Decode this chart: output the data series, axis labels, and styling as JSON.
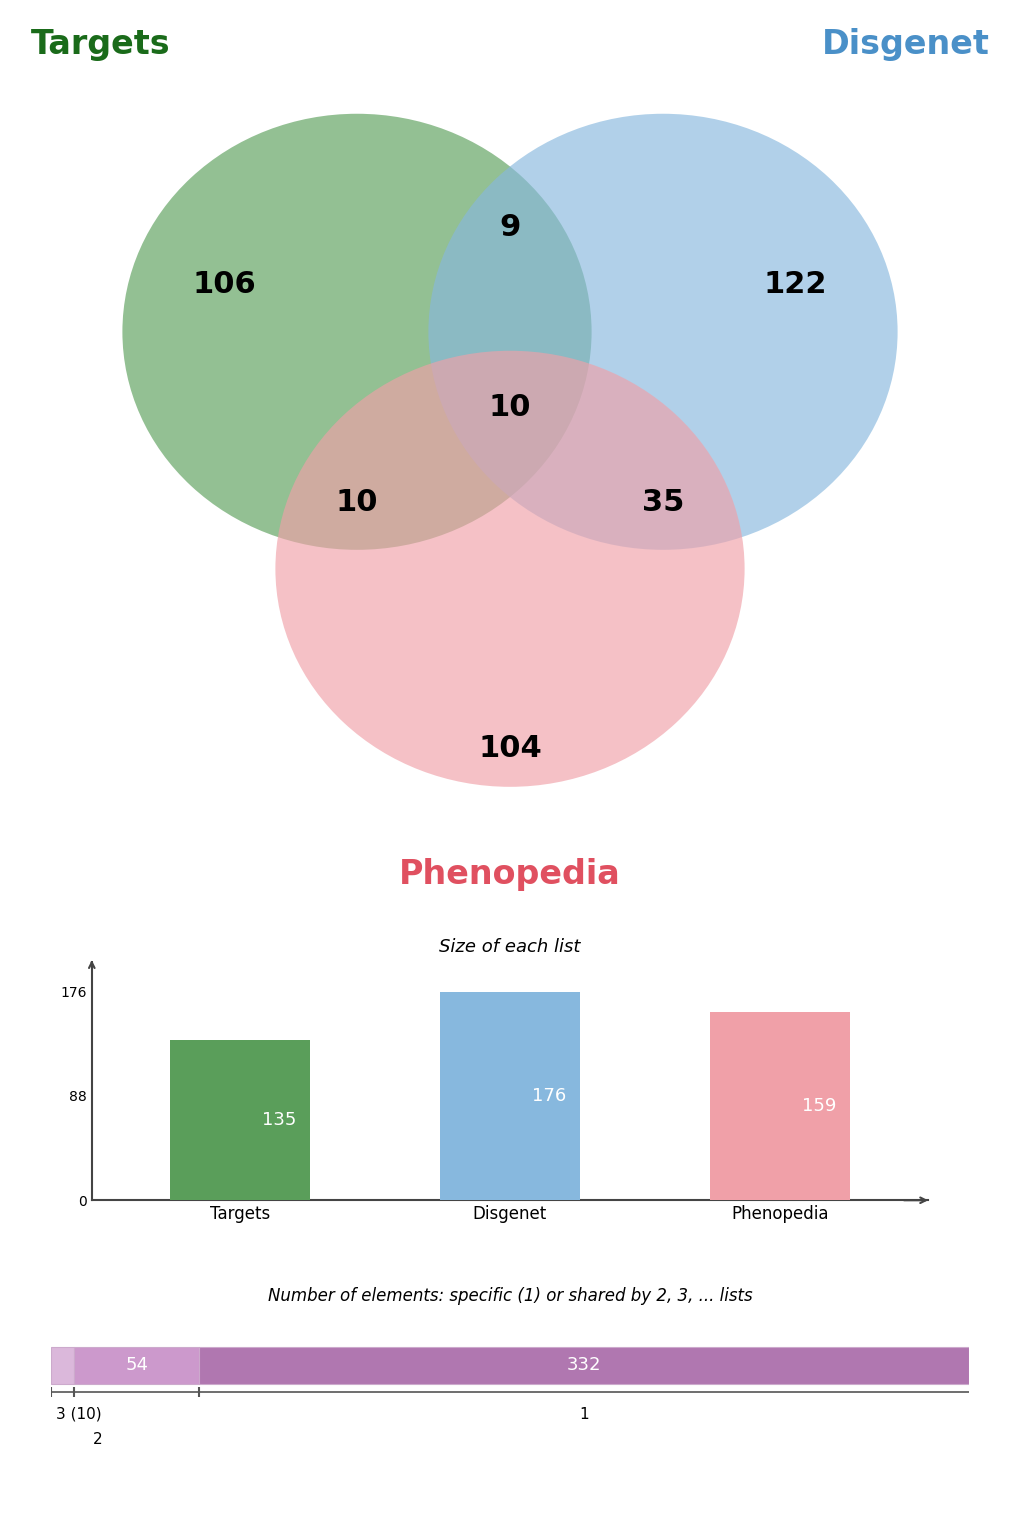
{
  "venn": {
    "targets_label": "Targets",
    "disgenet_label": "Disgenet",
    "phenopedia_label": "Phenopedia",
    "targets_color": "#5a9e5a",
    "disgenet_color": "#87b8de",
    "phenopedia_color": "#f0a0a8",
    "targets_only": 106,
    "disgenet_only": 122,
    "phenopedia_only": 104,
    "targets_disgenet": 9,
    "targets_phenopedia": 10,
    "disgenet_phenopedia": 35,
    "all_three": 10,
    "targets_label_color": "#1a6b1a",
    "disgenet_label_color": "#4a90c8",
    "phenopedia_label_color": "#e05060",
    "alpha": 0.65
  },
  "bar": {
    "title": "Size of each list",
    "categories": [
      "Targets",
      "Disgenet",
      "Phenopedia"
    ],
    "values": [
      135,
      176,
      159
    ],
    "colors": [
      "#5a9e5a",
      "#87b8de",
      "#f0a0a8"
    ],
    "yticks": [
      0,
      88,
      176
    ],
    "ylim": 200
  },
  "stacked": {
    "title": "Number of elements: specific (1) or shared by 2, 3, ... lists",
    "segments": [
      10,
      54,
      332
    ],
    "labels": [
      "",
      "54",
      "332"
    ],
    "colors": [
      "#dbb8db",
      "#cc99cc",
      "#b077b0"
    ]
  }
}
